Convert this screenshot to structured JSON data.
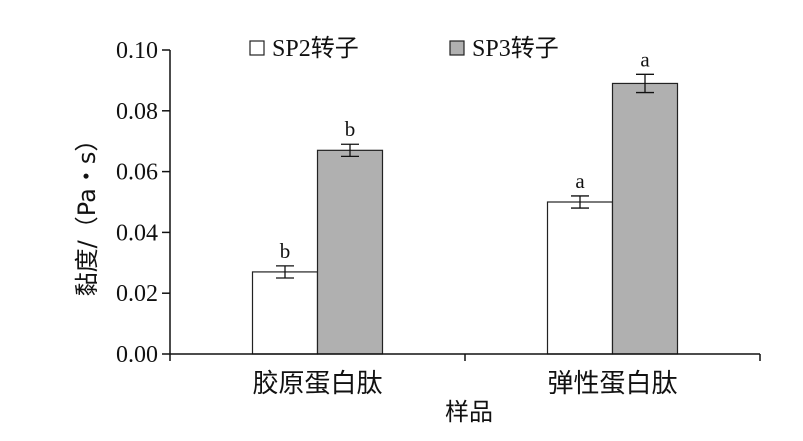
{
  "chart_data": {
    "type": "bar",
    "title": "",
    "xlabel": "样品",
    "ylabel": "黏度/（Pa・s）",
    "categories": [
      "胶原蛋白肽",
      "弹性蛋白肽"
    ],
    "series": [
      {
        "name": "SP2转子",
        "values": [
          0.027,
          0.05
        ],
        "errors": [
          0.002,
          0.002
        ],
        "labels": [
          "b",
          "a"
        ],
        "color": "#ffffff"
      },
      {
        "name": "SP3转子",
        "values": [
          0.067,
          0.089
        ],
        "errors": [
          0.002,
          0.003
        ],
        "labels": [
          "b",
          "a"
        ],
        "color": "#b0b0b0"
      }
    ],
    "ylim": [
      0,
      0.1
    ],
    "yticks": [
      "0.00",
      "0.02",
      "0.04",
      "0.06",
      "0.08",
      "0.10"
    ],
    "grid": false,
    "legend_position": "top"
  }
}
